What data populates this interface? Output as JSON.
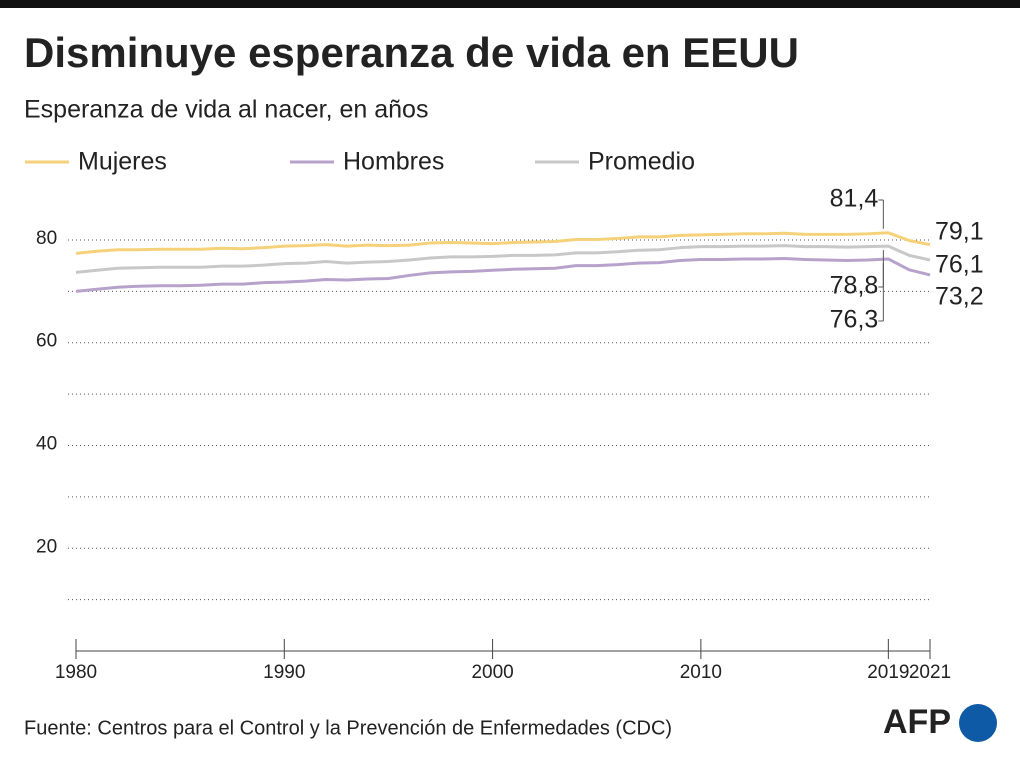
{
  "chart_data": {
    "type": "line",
    "title": "Disminuye esperanza de vida en EEUU",
    "subtitle": "Esperanza de vida al nacer, en años",
    "source": "Fuente: Centros para el Control y la Prevención de Enfermedades (CDC)",
    "logo": "AFP",
    "x": [
      1980,
      1981,
      1982,
      1983,
      1984,
      1985,
      1986,
      1987,
      1988,
      1989,
      1990,
      1991,
      1992,
      1993,
      1994,
      1995,
      1996,
      1997,
      1998,
      1999,
      2000,
      2001,
      2002,
      2003,
      2004,
      2005,
      2006,
      2007,
      2008,
      2009,
      2010,
      2011,
      2012,
      2013,
      2014,
      2015,
      2016,
      2017,
      2018,
      2019,
      2020,
      2021
    ],
    "series": [
      {
        "name": "Mujeres",
        "color": "#f5d27a",
        "values": [
          77.4,
          77.8,
          78.1,
          78.1,
          78.2,
          78.2,
          78.2,
          78.4,
          78.3,
          78.5,
          78.8,
          78.9,
          79.1,
          78.8,
          79.0,
          78.9,
          79.0,
          79.4,
          79.5,
          79.4,
          79.3,
          79.5,
          79.6,
          79.7,
          80.1,
          80.1,
          80.3,
          80.6,
          80.6,
          80.9,
          81.0,
          81.1,
          81.2,
          81.2,
          81.3,
          81.1,
          81.1,
          81.1,
          81.2,
          81.4,
          79.9,
          79.1
        ],
        "value_labels": [
          null,
          null,
          null,
          null,
          null,
          null,
          null,
          null,
          null,
          null,
          null,
          null,
          null,
          null,
          null,
          null,
          null,
          null,
          null,
          null,
          null,
          null,
          null,
          null,
          null,
          null,
          null,
          null,
          null,
          null,
          null,
          null,
          null,
          null,
          null,
          null,
          null,
          null,
          null,
          "81,4",
          null,
          "79,1"
        ]
      },
      {
        "name": "Hombres",
        "color": "#b8a2cc",
        "values": [
          70.0,
          70.4,
          70.8,
          71.0,
          71.1,
          71.1,
          71.2,
          71.4,
          71.4,
          71.7,
          71.8,
          72.0,
          72.3,
          72.2,
          72.4,
          72.5,
          73.1,
          73.6,
          73.8,
          73.9,
          74.1,
          74.3,
          74.4,
          74.5,
          75.0,
          75.0,
          75.2,
          75.5,
          75.6,
          76.0,
          76.2,
          76.2,
          76.3,
          76.3,
          76.4,
          76.2,
          76.1,
          76.0,
          76.1,
          76.3,
          74.2,
          73.2
        ],
        "value_labels": [
          null,
          null,
          null,
          null,
          null,
          null,
          null,
          null,
          null,
          null,
          null,
          null,
          null,
          null,
          null,
          null,
          null,
          null,
          null,
          null,
          null,
          null,
          null,
          null,
          null,
          null,
          null,
          null,
          null,
          null,
          null,
          null,
          null,
          null,
          null,
          null,
          null,
          null,
          null,
          "76,3",
          null,
          "73,2"
        ]
      },
      {
        "name": "Promedio",
        "color": "#c8c8c8",
        "values": [
          73.7,
          74.1,
          74.5,
          74.6,
          74.7,
          74.7,
          74.7,
          74.9,
          74.9,
          75.1,
          75.4,
          75.5,
          75.8,
          75.5,
          75.7,
          75.8,
          76.1,
          76.5,
          76.7,
          76.7,
          76.8,
          77.0,
          77.0,
          77.1,
          77.5,
          77.5,
          77.7,
          78.0,
          78.1,
          78.5,
          78.7,
          78.7,
          78.8,
          78.8,
          78.9,
          78.7,
          78.7,
          78.6,
          78.7,
          78.8,
          77.0,
          76.1
        ],
        "value_labels": [
          null,
          null,
          null,
          null,
          null,
          null,
          null,
          null,
          null,
          null,
          null,
          null,
          null,
          null,
          null,
          null,
          null,
          null,
          null,
          null,
          null,
          null,
          null,
          null,
          null,
          null,
          null,
          null,
          null,
          null,
          null,
          null,
          null,
          null,
          null,
          null,
          null,
          null,
          null,
          "78,8",
          null,
          "76,1"
        ]
      }
    ],
    "xlim": [
      1980,
      2021
    ],
    "xticks": [
      1980,
      1990,
      2000,
      2010,
      2019,
      2021
    ],
    "ylim": [
      0,
      90
    ],
    "yticks": [
      20,
      40,
      60,
      80
    ],
    "yticks_minor": [
      10,
      30,
      50,
      70
    ],
    "grid": true
  }
}
